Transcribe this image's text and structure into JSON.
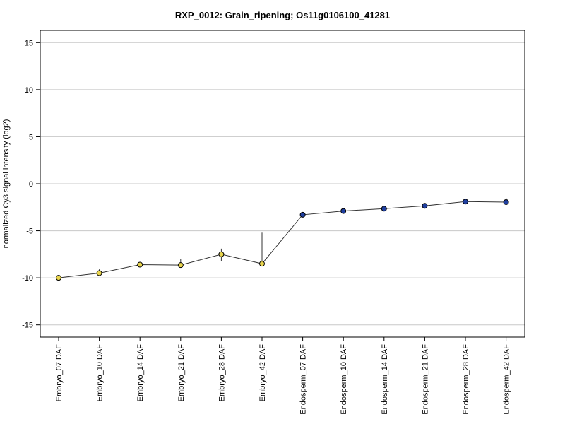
{
  "chart_data": {
    "type": "line",
    "title": "RXP_0012: Grain_ripening; Os11g0106100_41281",
    "xlabel": "",
    "ylabel": "normalized Cy3 signal intensity (log2)",
    "ylim": [
      -16.3,
      16.3
    ],
    "yticks": [
      -15,
      -10,
      -5,
      0,
      5,
      10,
      15
    ],
    "grid": true,
    "categories": [
      "Embryo_07 DAF",
      "Embryo_10 DAF",
      "Embryo_14 DAF",
      "Embryo_21 DAF",
      "Embryo_28 DAF",
      "Embryo_42 DAF",
      "Endosperm_07 DAF",
      "Endosperm_10 DAF",
      "Endosperm_14 DAF",
      "Endosperm_21 DAF",
      "Endosperm_28 DAF",
      "Endosperm_42 DAF"
    ],
    "series": [
      {
        "values": [
          -10.0,
          -9.5,
          -8.6,
          -8.65,
          -7.5,
          -8.5,
          -3.3,
          -2.9,
          -2.65,
          -2.35,
          -1.9,
          -1.95
        ],
        "error_low": [
          -10.1,
          -9.8,
          -8.7,
          -8.9,
          -8.2,
          -8.6,
          -3.4,
          -3.0,
          -2.8,
          -2.45,
          -2.0,
          -2.2
        ],
        "error_high": [
          -9.9,
          -9.1,
          -8.5,
          -8.0,
          -6.9,
          -5.2,
          -3.2,
          -2.8,
          -2.5,
          -2.25,
          -1.8,
          -1.5
        ],
        "colors": [
          "#e8d44d",
          "#e8d44d",
          "#e8d44d",
          "#e8d44d",
          "#e8d44d",
          "#e8d44d",
          "#1f3fa0",
          "#1f3fa0",
          "#1f3fa0",
          "#1f3fa0",
          "#1f3fa0",
          "#1f3fa0"
        ]
      }
    ]
  }
}
